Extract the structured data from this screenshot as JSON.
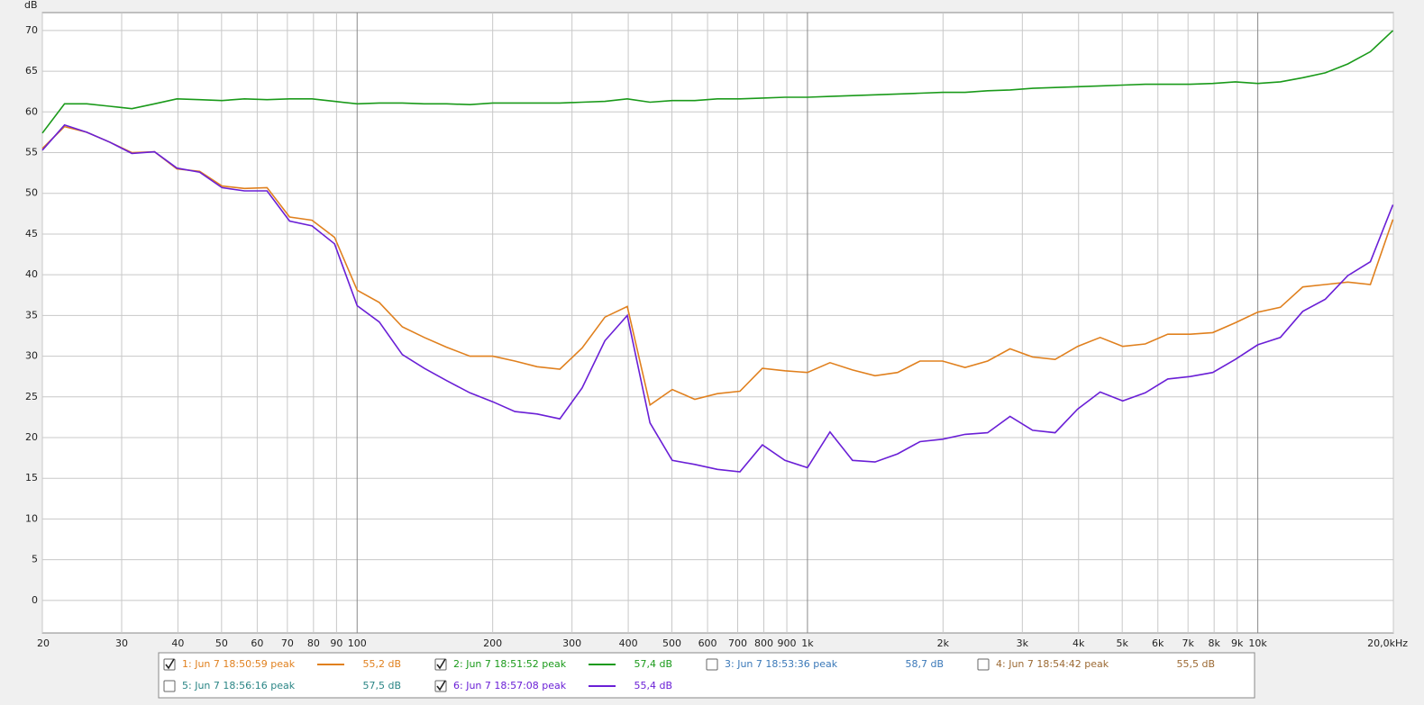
{
  "chart_data": {
    "type": "line",
    "y_label": "dB",
    "x_scale": "log",
    "grid": true,
    "x": [
      20,
      22.4,
      25.1,
      28.2,
      31.6,
      35.5,
      39.8,
      44.7,
      50.1,
      56.2,
      63.1,
      70.8,
      79.4,
      89.1,
      100,
      112,
      126,
      141,
      158,
      178,
      200,
      224,
      251,
      282,
      316,
      355,
      398,
      447,
      501,
      562,
      631,
      708,
      794,
      891,
      1000,
      1122,
      1259,
      1413,
      1585,
      1778,
      1995,
      2239,
      2512,
      2818,
      3162,
      3548,
      3981,
      4467,
      5012,
      5623,
      6310,
      7079,
      7943,
      8913,
      10000,
      11220,
      12589,
      14125,
      15849,
      17783,
      19953
    ],
    "series": [
      {
        "name": "1: Jun 7 18:50:59 peak",
        "checked": true,
        "color": "#e0801e",
        "level_label": "55,2 dB",
        "values": [
          55.5,
          58.2,
          57.5,
          56.3,
          55.0,
          55.1,
          53.0,
          52.7,
          50.9,
          50.6,
          50.7,
          47.1,
          46.7,
          44.6,
          38.1,
          36.6,
          33.6,
          32.3,
          31.1,
          30.0,
          30.0,
          29.4,
          28.7,
          28.4,
          31.0,
          34.8,
          36.1,
          24.0,
          25.9,
          24.7,
          25.4,
          25.7,
          28.5,
          28.2,
          28.0,
          29.2,
          28.3,
          27.6,
          28.0,
          29.4,
          29.4,
          28.6,
          29.4,
          30.9,
          29.9,
          29.6,
          31.2,
          32.3,
          31.2,
          31.5,
          32.7,
          32.7,
          32.9,
          34.1,
          35.4,
          36.0,
          38.5,
          38.8,
          39.1,
          38.8,
          46.8
        ]
      },
      {
        "name": "2: Jun 7 18:51:52 peak",
        "checked": true,
        "color": "#1a9a1a",
        "level_label": "57,4 dB",
        "values": [
          57.4,
          61.0,
          61.0,
          60.7,
          60.4,
          61.0,
          61.6,
          61.5,
          61.4,
          61.6,
          61.5,
          61.6,
          61.6,
          61.3,
          61.0,
          61.1,
          61.1,
          61.0,
          61.0,
          60.9,
          61.1,
          61.1,
          61.1,
          61.1,
          61.2,
          61.3,
          61.6,
          61.2,
          61.4,
          61.4,
          61.6,
          61.6,
          61.7,
          61.8,
          61.8,
          61.9,
          62.0,
          62.1,
          62.2,
          62.3,
          62.4,
          62.4,
          62.6,
          62.7,
          62.9,
          63.0,
          63.1,
          63.2,
          63.3,
          63.4,
          63.4,
          63.4,
          63.5,
          63.7,
          63.5,
          63.7,
          64.2,
          64.8,
          65.9,
          67.4,
          70.0
        ]
      },
      {
        "name": "3: Jun 7 18:53:36 peak",
        "checked": false,
        "color": "#3a78b8",
        "level_label": "58,7 dB"
      },
      {
        "name": "4: Jun 7 18:54:42 peak",
        "checked": false,
        "color": "#9c6a34",
        "level_label": "55,5 dB"
      },
      {
        "name": "5: Jun 7 18:56:16 peak",
        "checked": false,
        "color": "#2a8585",
        "level_label": "57,5 dB"
      },
      {
        "name": "6: Jun 7 18:57:08 peak",
        "checked": true,
        "color": "#6a1fd6",
        "level_label": "55,4 dB",
        "values": [
          55.3,
          58.4,
          57.5,
          56.3,
          54.9,
          55.1,
          53.1,
          52.6,
          50.7,
          50.3,
          50.3,
          46.6,
          46.0,
          43.8,
          36.2,
          34.2,
          30.2,
          28.5,
          27.0,
          25.5,
          24.4,
          23.2,
          22.9,
          22.3,
          26.1,
          31.9,
          35.0,
          21.8,
          17.2,
          16.7,
          16.1,
          15.8,
          19.1,
          17.2,
          16.3,
          20.7,
          17.2,
          17.0,
          18.0,
          19.5,
          19.8,
          20.4,
          20.6,
          22.6,
          20.9,
          20.6,
          23.5,
          25.6,
          24.5,
          25.5,
          27.2,
          27.5,
          28.0,
          29.6,
          31.4,
          32.3,
          35.5,
          37.0,
          39.9,
          41.6,
          48.6
        ]
      }
    ],
    "xlim": [
      20,
      20000
    ],
    "ylim": [
      -4,
      72.2
    ],
    "xticks": [
      20,
      30,
      40,
      50,
      60,
      70,
      80,
      90,
      100,
      200,
      300,
      400,
      500,
      600,
      700,
      800,
      900,
      {
        "value": 1000,
        "label": "1k"
      },
      {
        "value": 2000,
        "label": "2k"
      },
      {
        "value": 3000,
        "label": "3k"
      },
      {
        "value": 4000,
        "label": "4k"
      },
      {
        "value": 5000,
        "label": "5k"
      },
      {
        "value": 6000,
        "label": "6k"
      },
      {
        "value": 7000,
        "label": "7k"
      },
      {
        "value": 8000,
        "label": "8k"
      },
      {
        "value": 9000,
        "label": "9k"
      },
      {
        "value": 10000,
        "label": "10k"
      },
      {
        "value": 20000,
        "label": "20,0kHz"
      }
    ],
    "yticks": [
      0,
      5,
      10,
      15,
      20,
      25,
      30,
      35,
      40,
      45,
      50,
      55,
      60,
      65,
      70
    ]
  }
}
